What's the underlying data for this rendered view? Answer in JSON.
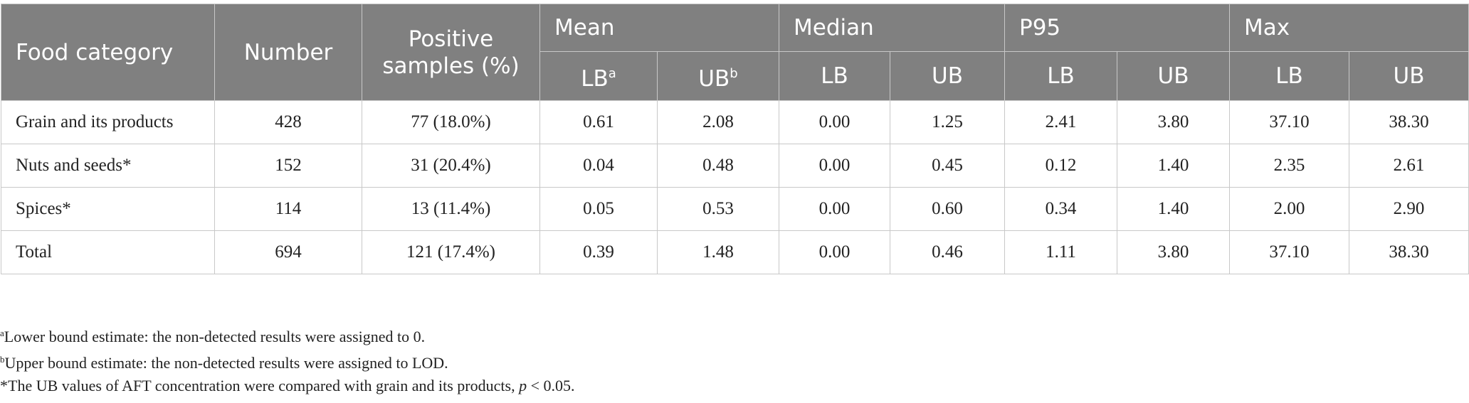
{
  "table": {
    "header": {
      "food_category": "Food category",
      "number": "Number",
      "positive_samples": "Positive samples (%)",
      "groups": [
        "Mean",
        "Median",
        "P95",
        "Max"
      ],
      "sub": [
        {
          "label": "LB",
          "sup": "a"
        },
        {
          "label": "UB",
          "sup": "b"
        },
        {
          "label": "LB"
        },
        {
          "label": "UB"
        },
        {
          "label": "LB"
        },
        {
          "label": "UB"
        },
        {
          "label": "LB"
        },
        {
          "label": "UB"
        }
      ]
    },
    "rows": [
      [
        "Grain and its products",
        "428",
        "77 (18.0%)",
        "0.61",
        "2.08",
        "0.00",
        "1.25",
        "2.41",
        "3.80",
        "37.10",
        "38.30"
      ],
      [
        "Nuts and seeds*",
        "152",
        "31 (20.4%)",
        "0.04",
        "0.48",
        "0.00",
        "0.45",
        "0.12",
        "1.40",
        "2.35",
        "2.61"
      ],
      [
        "Spices*",
        "114",
        "13 (11.4%)",
        "0.05",
        "0.53",
        "0.00",
        "0.60",
        "0.34",
        "1.40",
        "2.00",
        "2.90"
      ],
      [
        "Total",
        "694",
        "121 (17.4%)",
        "0.39",
        "1.48",
        "0.00",
        "0.46",
        "1.11",
        "3.80",
        "37.10",
        "38.30"
      ]
    ]
  },
  "footnotes": [
    {
      "mark": "a",
      "text": "Lower bound estimate: the non-detected results were assigned to 0."
    },
    {
      "mark": "b",
      "text": "Upper bound estimate: the non-detected results were assigned to LOD."
    },
    {
      "text": "*The UB values of AFT concentration were compared with grain and its products, ",
      "italic": "p",
      "rest": " < 0.05."
    }
  ]
}
